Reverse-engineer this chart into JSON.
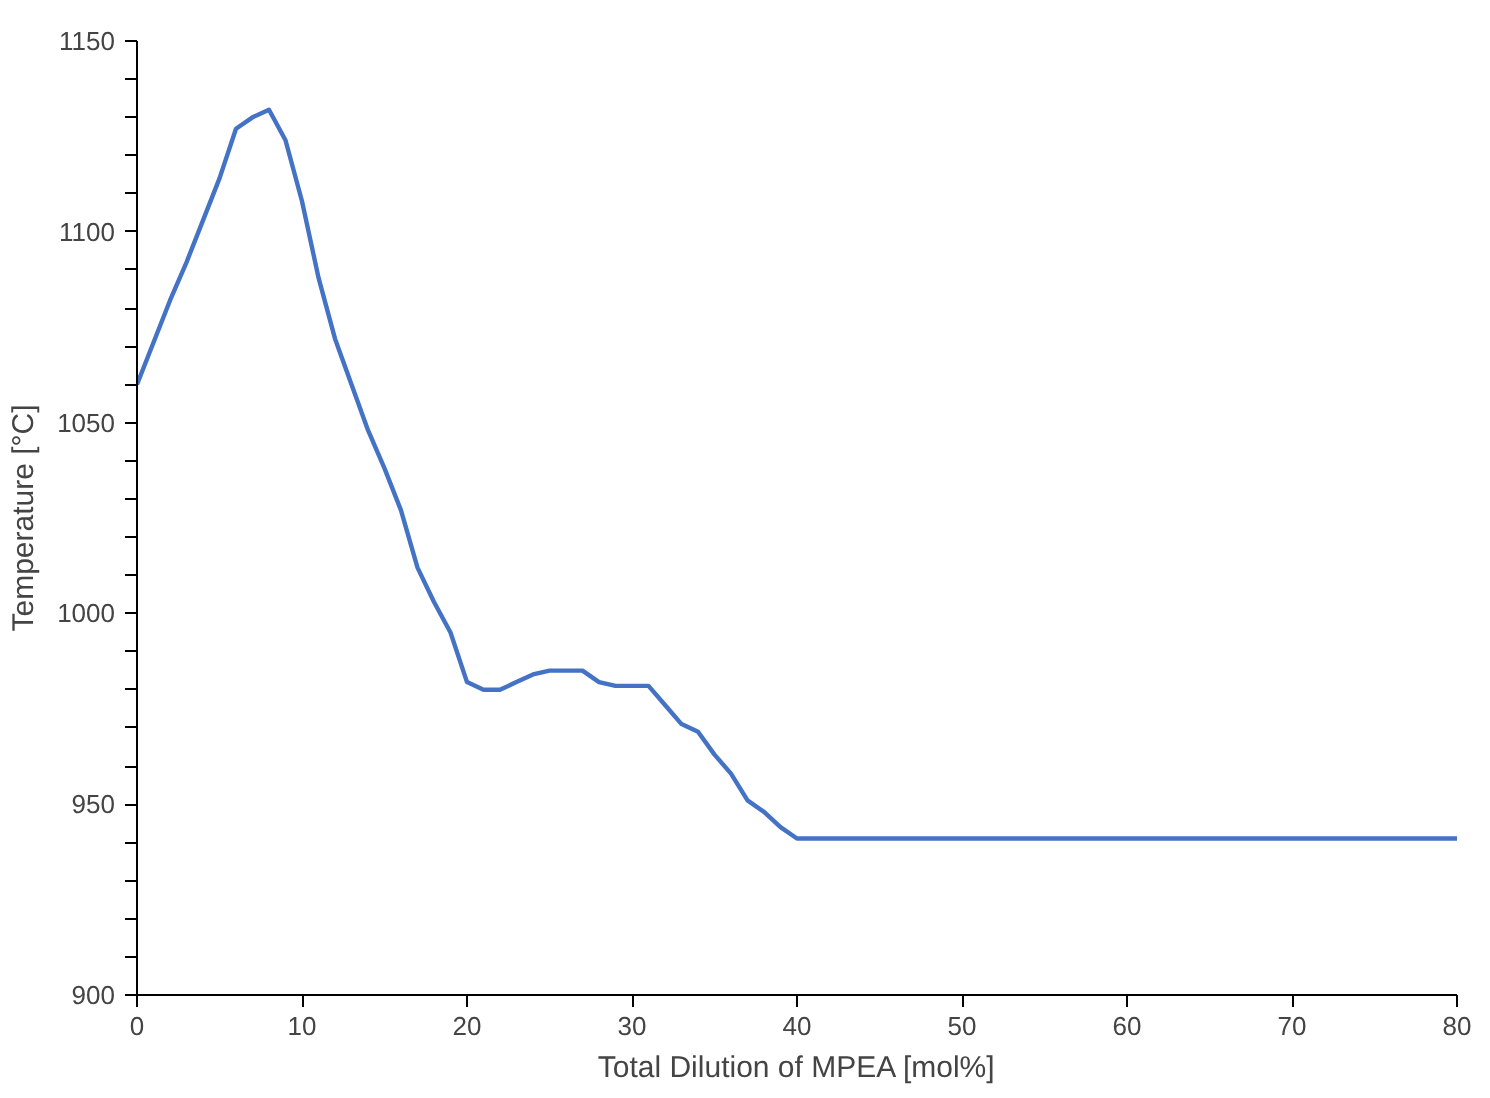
{
  "chart_data": {
    "type": "line",
    "xlabel": "Total Dilution of MPEA [mol%]",
    "ylabel": "Temperature [°C]",
    "x": [
      0,
      1,
      2,
      3,
      4,
      5,
      6,
      7,
      8,
      9,
      10,
      11,
      12,
      13,
      14,
      15,
      16,
      17,
      18,
      19,
      20,
      21,
      22,
      23,
      24,
      25,
      26,
      27,
      28,
      29,
      30,
      31,
      32,
      33,
      34,
      35,
      36,
      37,
      38,
      39,
      40,
      50,
      60,
      70,
      80
    ],
    "series": [
      {
        "color": "#4472c4",
        "values": [
          1060,
          1071,
          1082,
          1092,
          1103,
          1114,
          1127,
          1130,
          1132,
          1124,
          1108,
          1088,
          1072,
          1060,
          1048,
          1038,
          1027,
          1012,
          1003,
          995,
          982,
          980,
          980,
          982,
          984,
          985,
          985,
          985,
          982,
          981,
          981,
          981,
          976,
          971,
          969,
          963,
          958,
          951,
          948,
          944,
          941,
          941,
          941,
          941,
          941
        ]
      }
    ],
    "xlim": [
      0,
      80
    ],
    "xticks": [
      0,
      10,
      20,
      30,
      40,
      50,
      60,
      70,
      80
    ],
    "ylim": [
      900,
      1150
    ],
    "yticks": [
      900,
      {
        "value": 910,
        "label": null
      },
      {
        "value": 920,
        "label": null
      },
      {
        "value": 930,
        "label": null
      },
      {
        "value": 940,
        "label": null
      },
      950,
      {
        "value": 960,
        "label": null
      },
      {
        "value": 970,
        "label": null
      },
      {
        "value": 980,
        "label": null
      },
      {
        "value": 990,
        "label": null
      },
      1000,
      {
        "value": 1010,
        "label": null
      },
      {
        "value": 1020,
        "label": null
      },
      {
        "value": 1030,
        "label": null
      },
      {
        "value": 1040,
        "label": null
      },
      1050,
      {
        "value": 1060,
        "label": null
      },
      {
        "value": 1070,
        "label": null
      },
      {
        "value": 1080,
        "label": null
      },
      {
        "value": 1090,
        "label": null
      },
      1100,
      {
        "value": 1110,
        "label": null
      },
      {
        "value": 1120,
        "label": null
      },
      {
        "value": 1130,
        "label": null
      },
      {
        "value": 1140,
        "label": null
      },
      1150
    ],
    "grid": false,
    "marker": "none",
    "line_style": "solid"
  }
}
